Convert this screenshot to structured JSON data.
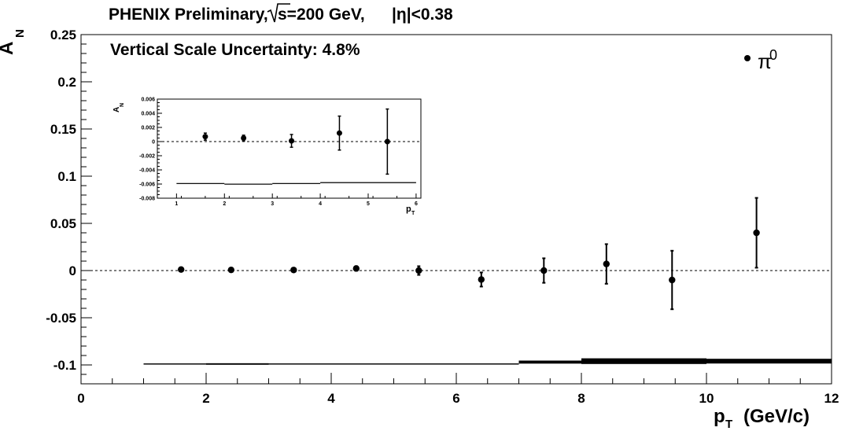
{
  "chart_data": [
    {
      "type": "scatter",
      "title": "PHENIX Preliminary,",
      "title_energy": "s=200 GeV,",
      "title_eta": "|η|<0.38",
      "subtitle": "Vertical Scale Uncertainty: 4.8%",
      "xlabel": "p",
      "xlabel_sub": "T",
      "xlabel_unit": "(GeV/c)",
      "ylabel": "A",
      "ylabel_sub": "N",
      "xlim": [
        0,
        12
      ],
      "ylim": [
        -0.12,
        0.25
      ],
      "x_ticks": [
        "0",
        "2",
        "4",
        "6",
        "8",
        "10",
        "12"
      ],
      "y_ticks": [
        "-0.1",
        "-0.05",
        "0",
        "0.05",
        "0.1",
        "0.15",
        "0.2",
        "0.25"
      ],
      "legend": {
        "label": "π",
        "superscript": "0",
        "position": "top-right"
      },
      "reference_line": 0,
      "series": [
        {
          "name": "π0",
          "points": [
            {
              "x": 1.6,
              "y": 0.0011,
              "err": 0.0004
            },
            {
              "x": 2.4,
              "y": 0.0007,
              "err": 0.0005
            },
            {
              "x": 3.4,
              "y": 0.0006,
              "err": 0.0009
            },
            {
              "x": 4.4,
              "y": 0.0022,
              "err": 0.0024
            },
            {
              "x": 5.4,
              "y": 0.0,
              "err": 0.0046
            },
            {
              "x": 6.4,
              "y": -0.0095,
              "err": 0.0075
            },
            {
              "x": 7.4,
              "y": 0.0,
              "err": 0.013
            },
            {
              "x": 8.4,
              "y": 0.007,
              "err": 0.021
            },
            {
              "x": 9.45,
              "y": -0.01,
              "err": 0.031
            },
            {
              "x": 10.8,
              "y": 0.04,
              "err": 0.037
            }
          ]
        }
      ],
      "systematic_band": [
        {
          "x0": 1.0,
          "x1": 2.0,
          "y": -0.099,
          "half": 0.0006
        },
        {
          "x0": 2.0,
          "x1": 3.0,
          "y": -0.099,
          "half": 0.0008
        },
        {
          "x0": 3.0,
          "x1": 4.0,
          "y": -0.099,
          "half": 0.0006
        },
        {
          "x0": 4.0,
          "x1": 5.0,
          "y": -0.099,
          "half": 0.0006
        },
        {
          "x0": 5.0,
          "x1": 6.0,
          "y": -0.099,
          "half": 0.0006
        },
        {
          "x0": 6.0,
          "x1": 7.0,
          "y": -0.099,
          "half": 0.0006
        },
        {
          "x0": 7.0,
          "x1": 8.0,
          "y": -0.097,
          "half": 0.0016
        },
        {
          "x0": 8.0,
          "x1": 10.0,
          "y": -0.096,
          "half": 0.003
        },
        {
          "x0": 10.0,
          "x1": 12.0,
          "y": -0.096,
          "half": 0.0025
        }
      ]
    },
    {
      "type": "scatter",
      "title": "",
      "xlabel": "p",
      "xlabel_sub": "T",
      "ylabel": "A",
      "ylabel_sub": "N",
      "xlim": [
        0.6,
        6.1
      ],
      "ylim": [
        -0.008,
        0.006
      ],
      "x_ticks": [
        "1",
        "2",
        "3",
        "4",
        "5",
        "6"
      ],
      "y_ticks": [
        "-0.008",
        "-0.006",
        "-0.004",
        "-0.002",
        "0",
        "0.002",
        "0.004",
        "0.006"
      ],
      "reference_line": 0,
      "series": [
        {
          "name": "π0",
          "points": [
            {
              "x": 1.6,
              "y": 0.0007,
              "err": 0.0005
            },
            {
              "x": 2.4,
              "y": 0.0005,
              "err": 0.0004
            },
            {
              "x": 3.4,
              "y": 0.0001,
              "err": 0.0009
            },
            {
              "x": 4.4,
              "y": 0.0012,
              "err": 0.0024
            },
            {
              "x": 5.4,
              "y": 0.0,
              "err": 0.0046
            }
          ]
        }
      ],
      "systematic_band": [
        {
          "x0": 1.0,
          "x1": 2.0,
          "y": -0.0059,
          "half": 4e-05
        },
        {
          "x0": 2.0,
          "x1": 3.0,
          "y": -0.006,
          "half": 5e-05
        },
        {
          "x0": 3.0,
          "x1": 4.0,
          "y": -0.0059,
          "half": 4e-05
        },
        {
          "x0": 4.0,
          "x1": 6.0,
          "y": -0.0058,
          "half": 7e-05
        }
      ]
    }
  ]
}
